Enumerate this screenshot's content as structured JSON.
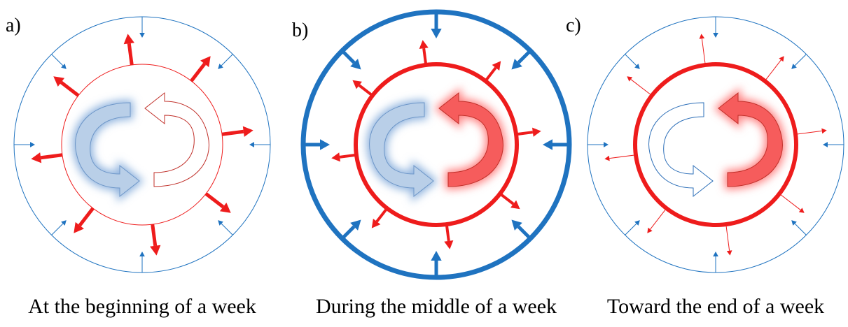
{
  "panels": [
    {
      "label": "a)",
      "caption": "At the beginning of a week"
    },
    {
      "label": "b)",
      "caption": "During the middle of a week"
    },
    {
      "label": "c)",
      "caption": "Toward the end of a week"
    }
  ]
}
